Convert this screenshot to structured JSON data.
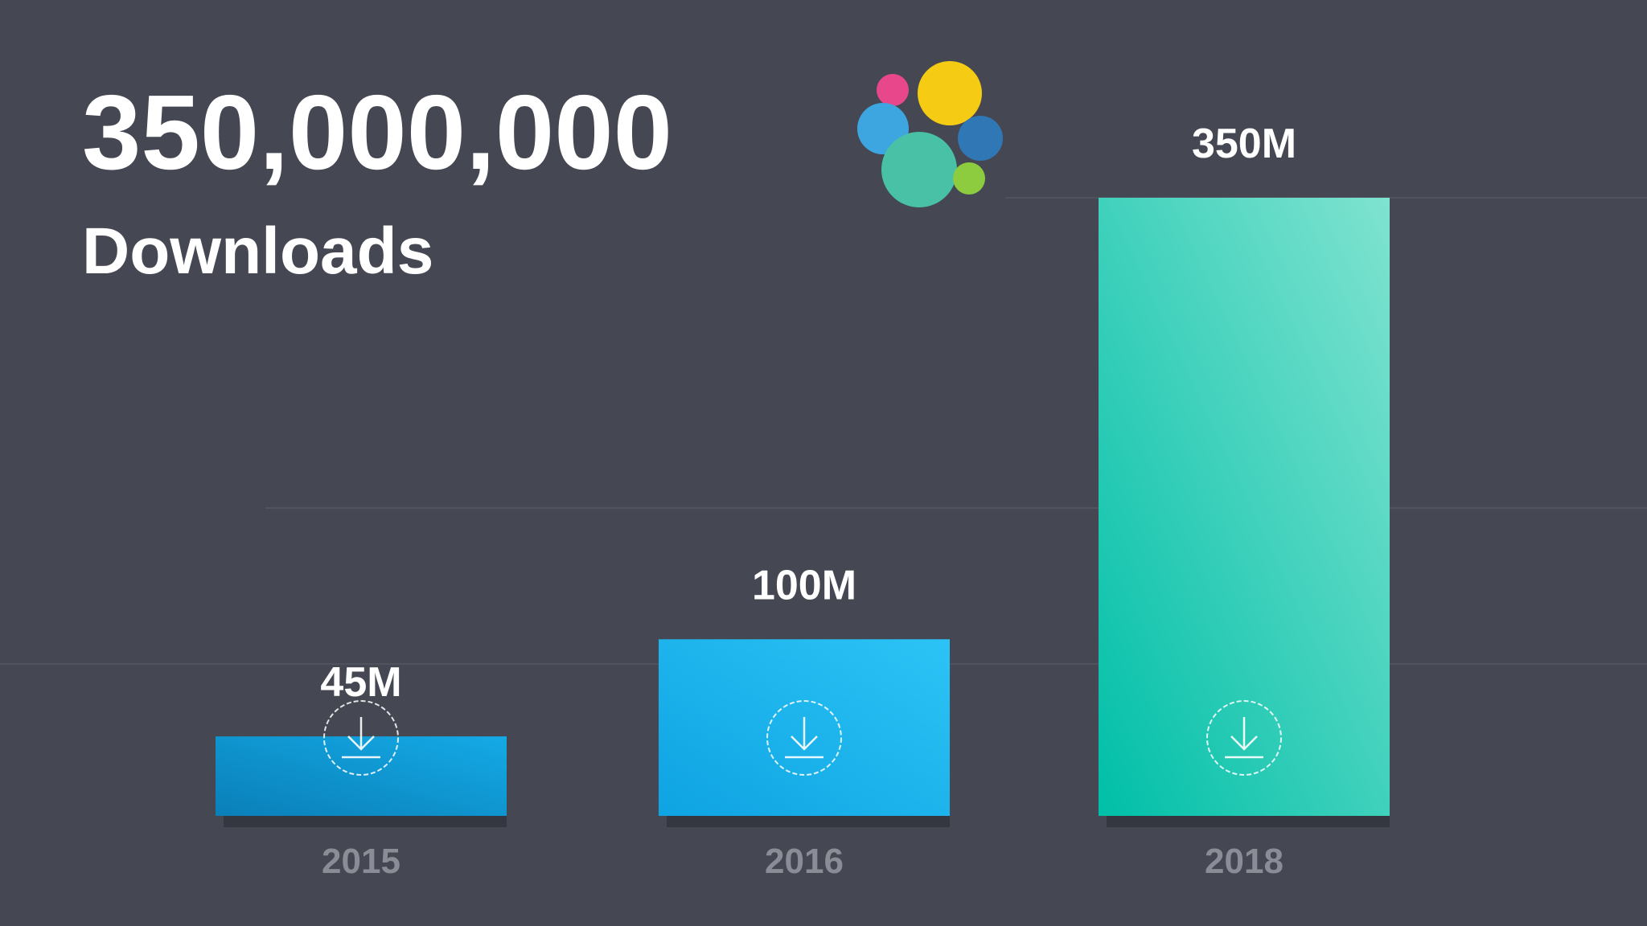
{
  "chart_data": {
    "type": "bar",
    "title": "350,000,000",
    "subtitle": "Downloads",
    "categories": [
      "2015",
      "2016",
      "2018"
    ],
    "values": [
      45,
      100,
      350
    ],
    "value_labels": [
      "45M",
      "100M",
      "350M"
    ],
    "colors": [
      [
        "#0a7fb8",
        "#14aae6"
      ],
      [
        "#0ea3e2",
        "#2cc4f6"
      ],
      [
        "#00bfa8",
        "#7fe3d0"
      ]
    ]
  }
}
